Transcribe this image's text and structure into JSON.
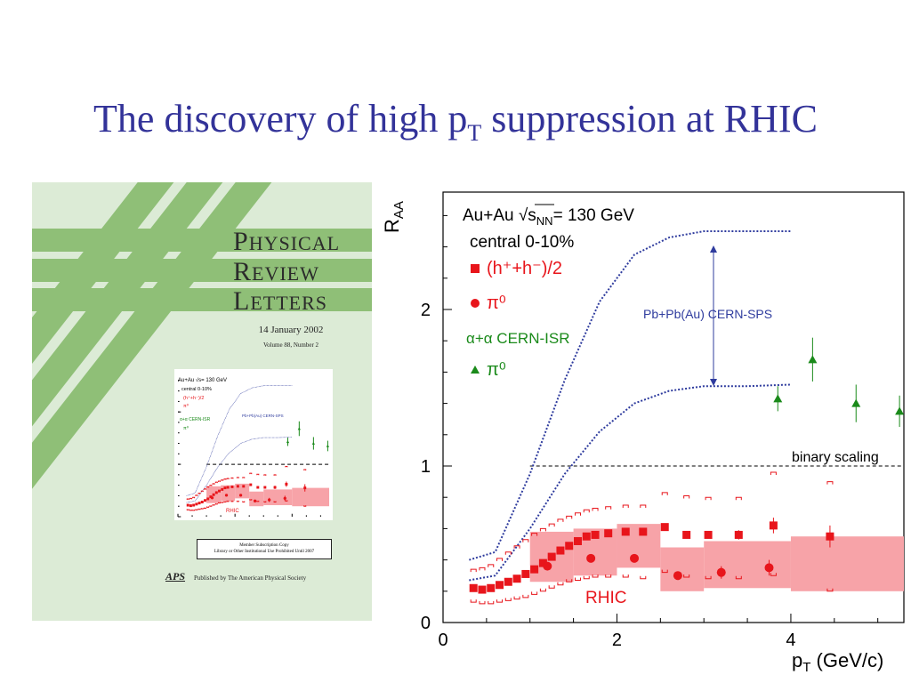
{
  "slide": {
    "title_main": "The discovery of high p",
    "title_sub": "T",
    "title_rest": " suppression at RHIC"
  },
  "cover": {
    "journal_line1_cap": "P",
    "journal_line1_rest": "HYSICAL",
    "journal_line2_cap": "R",
    "journal_line2_rest": "EVIEW",
    "journal_line3_cap": "L",
    "journal_line3_rest": "ETTERS",
    "date": "14 January 2002",
    "volume": "Volume 88, Number 2",
    "subscription_line1": "Member Subscription Copy",
    "subscription_line2": "Library or Other Institutional Use Prohibited Until 2007",
    "publisher_logo": "APS",
    "publisher": "Published by The American Physical Society",
    "colors": {
      "background": "#dcebd6",
      "stripes": "#8fbf77"
    }
  },
  "chart_data": {
    "type": "scatter",
    "title": "",
    "xlabel": "p_T (GeV/c)",
    "ylabel": "R_AA",
    "xlim": [
      0,
      5.3
    ],
    "ylim": [
      0,
      2.75
    ],
    "x_ticks": [
      "0",
      "2",
      "4"
    ],
    "y_ticks": [
      "0",
      "1",
      "2"
    ],
    "grid": false,
    "legend": {
      "system": "Au+Au",
      "energy": "= 130 GeV",
      "centrality": "central 0-10%",
      "rhic_hadrons": "(h⁺+h⁻)/2",
      "rhic_pi0": "π⁰",
      "isr_header": "α+α CERN-ISR",
      "isr_pi0": "π⁰"
    },
    "annotations": {
      "sps_band": "Pb+Pb(Au) CERN-SPS",
      "binary_scaling": "binary scaling",
      "rhic": "RHIC"
    },
    "colors": {
      "rhic": "#e8151b",
      "isr": "#1a8a1a",
      "sps": "#2f3c9e",
      "band": "#f7a3a8"
    },
    "series": [
      {
        "name": "(h⁺+h⁻)/2",
        "marker": "square",
        "x": [
          0.35,
          0.45,
          0.55,
          0.65,
          0.75,
          0.85,
          0.95,
          1.05,
          1.15,
          1.25,
          1.35,
          1.45,
          1.55,
          1.65,
          1.75,
          1.9,
          2.1,
          2.3,
          2.55,
          2.8,
          3.05,
          3.4,
          3.8,
          4.45
        ],
        "y": [
          0.22,
          0.21,
          0.22,
          0.24,
          0.26,
          0.28,
          0.31,
          0.34,
          0.38,
          0.42,
          0.46,
          0.49,
          0.52,
          0.55,
          0.56,
          0.57,
          0.58,
          0.58,
          0.61,
          0.56,
          0.56,
          0.56,
          0.62,
          0.55
        ],
        "err": [
          0.0,
          0.0,
          0.0,
          0.0,
          0.0,
          0.0,
          0.0,
          0.0,
          0.0,
          0.0,
          0.0,
          0.0,
          0.0,
          0.0,
          0.0,
          0.0,
          0.0,
          0.0,
          0.0,
          0.0,
          0.0,
          0.03,
          0.05,
          0.07
        ]
      },
      {
        "name": "π⁰ (RHIC)",
        "marker": "circle",
        "x": [
          1.2,
          1.7,
          2.2,
          2.7,
          3.2,
          3.75
        ],
        "y": [
          0.36,
          0.41,
          0.41,
          0.3,
          0.32,
          0.35
        ],
        "err": [
          0.0,
          0.0,
          0.0,
          0.0,
          0.04,
          0.05
        ]
      },
      {
        "name": "π⁰ (α+α CERN-ISR)",
        "marker": "triangle",
        "x": [
          3.85,
          4.25,
          4.75,
          5.25
        ],
        "y": [
          1.43,
          1.68,
          1.4,
          1.35
        ],
        "err": [
          0.08,
          0.14,
          0.12,
          0.1
        ]
      }
    ],
    "sps_curves": {
      "upper": {
        "x": [
          0.3,
          0.6,
          1.0,
          1.4,
          1.8,
          2.2,
          2.6,
          3.0,
          3.5,
          4.0
        ],
        "y": [
          0.4,
          0.45,
          0.95,
          1.55,
          2.05,
          2.35,
          2.46,
          2.5,
          2.5,
          2.5
        ]
      },
      "lower": {
        "x": [
          0.3,
          0.6,
          1.0,
          1.4,
          1.8,
          2.2,
          2.6,
          3.0,
          3.5,
          4.0
        ],
        "y": [
          0.27,
          0.3,
          0.6,
          0.95,
          1.22,
          1.4,
          1.48,
          1.51,
          1.51,
          1.52
        ]
      }
    },
    "systematic_boxes": {
      "x_edges": [
        1.0,
        1.5,
        2.0,
        2.5,
        3.0,
        4.0
      ],
      "y_low": [
        0.26,
        0.3,
        0.35,
        0.2,
        0.22,
        0.2
      ],
      "y_high": [
        0.58,
        0.6,
        0.63,
        0.48,
        0.52,
        0.55
      ]
    },
    "hadron_error_brackets": {
      "x": [
        0.35,
        0.45,
        0.55,
        0.65,
        0.75,
        0.85,
        0.95,
        1.05,
        1.15,
        1.25,
        1.35,
        1.45,
        1.55,
        1.65,
        1.75,
        1.9,
        2.1,
        2.3,
        2.55,
        2.8,
        3.05,
        3.4,
        3.8,
        4.45
      ],
      "upper": [
        0.34,
        0.35,
        0.37,
        0.41,
        0.45,
        0.49,
        0.53,
        0.57,
        0.6,
        0.63,
        0.66,
        0.68,
        0.7,
        0.72,
        0.73,
        0.74,
        0.75,
        0.75,
        0.83,
        0.81,
        0.8,
        0.8,
        0.96,
        0.9
      ],
      "lower": [
        0.13,
        0.12,
        0.12,
        0.13,
        0.14,
        0.15,
        0.16,
        0.18,
        0.2,
        0.22,
        0.24,
        0.26,
        0.27,
        0.28,
        0.29,
        0.29,
        0.29,
        0.28,
        0.32,
        0.29,
        0.28,
        0.28,
        0.3,
        0.2
      ]
    },
    "binary_scaling_line": {
      "x": [
        1.0,
        5.3
      ],
      "y": [
        1.0,
        1.0
      ]
    }
  }
}
